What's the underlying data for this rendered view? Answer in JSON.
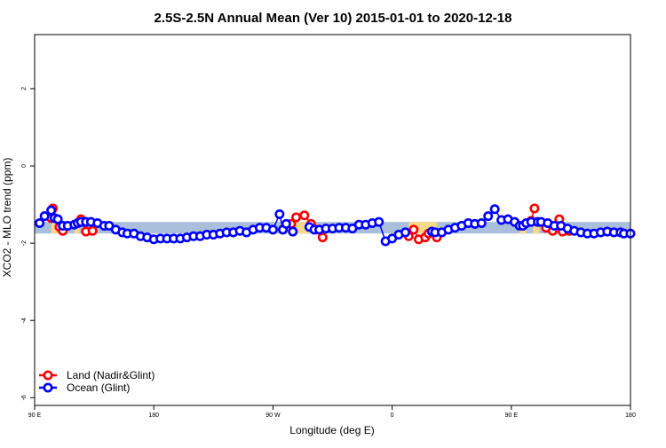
{
  "chart_data": {
    "type": "scatter",
    "title": "2.5S-2.5N Annual Mean (Ver 10)   2015-01-01 to 2020-12-18",
    "xlabel": "Longitude (deg E)",
    "ylabel": "XCO2 - MLO trend (ppm)",
    "xlim": [
      90,
      450
    ],
    "ylim": [
      -6.2,
      3.4
    ],
    "x_ticks": [
      {
        "value": 90,
        "label": "90 E"
      },
      {
        "value": 162,
        "label": "180"
      },
      {
        "value": 234,
        "label": "90 W"
      },
      {
        "value": 306,
        "label": "0"
      },
      {
        "value": 378,
        "label": "90 E"
      },
      {
        "value": 450,
        "label": "180"
      }
    ],
    "y_ticks": [
      {
        "value": 2,
        "label": "2"
      },
      {
        "value": 0,
        "label": "0"
      },
      {
        "value": -2,
        "label": "-2"
      },
      {
        "value": -4,
        "label": "-4"
      },
      {
        "value": -6,
        "label": "-6"
      }
    ],
    "grid": false,
    "legend_position": "bottom-left",
    "reference_band": {
      "ymin": -1.75,
      "ymax": -1.45,
      "color": "#a9bfdc"
    },
    "land_shading": {
      "color": "#f6d98a",
      "regions": [
        [
          100,
          104
        ],
        [
          114,
          117
        ],
        [
          242,
          256
        ],
        [
          316,
          333
        ],
        [
          383,
          387
        ],
        [
          391,
          395
        ]
      ]
    },
    "series": [
      {
        "name": "Land (Nadir&Glint)",
        "color": "#ff0000",
        "x": [
          100,
          101,
          105,
          107,
          118,
          121,
          125,
          240,
          245,
          248,
          253,
          257,
          260,
          264,
          316,
          319,
          322,
          326,
          328,
          333,
          390,
          392,
          399,
          403,
          407,
          409,
          413
        ],
        "y": [
          -1.35,
          -1.1,
          -1.58,
          -1.68,
          -1.38,
          -1.7,
          -1.68,
          -1.65,
          -1.5,
          -1.33,
          -1.28,
          -1.5,
          -1.65,
          -1.85,
          -1.82,
          -1.65,
          -1.9,
          -1.85,
          -1.75,
          -1.85,
          -1.42,
          -1.1,
          -1.6,
          -1.68,
          -1.38,
          -1.7,
          -1.68
        ]
      },
      {
        "name": "Ocean (Glint)",
        "color": "#0000ff",
        "x": [
          93,
          96,
          100,
          102,
          104,
          107,
          110,
          114,
          116,
          118,
          121,
          124,
          128,
          132,
          135,
          139,
          143,
          146,
          150,
          154,
          158,
          162,
          166,
          170,
          174,
          178,
          182,
          186,
          190,
          194,
          198,
          202,
          206,
          210,
          214,
          218,
          222,
          226,
          230,
          234,
          238,
          240,
          242,
          246,
          256,
          259,
          262,
          266,
          270,
          274,
          278,
          282,
          286,
          290,
          294,
          298,
          302,
          306,
          310,
          314,
          330,
          332,
          336,
          340,
          344,
          348,
          352,
          356,
          360,
          364,
          368,
          372,
          376,
          380,
          383,
          385,
          387,
          390,
          394,
          396,
          400,
          404,
          408,
          412,
          416,
          420,
          424,
          428,
          432,
          436,
          440,
          444,
          446,
          450
        ],
        "y": [
          -1.48,
          -1.3,
          -1.15,
          -1.35,
          -1.38,
          -1.55,
          -1.55,
          -1.52,
          -1.48,
          -1.45,
          -1.45,
          -1.45,
          -1.48,
          -1.55,
          -1.55,
          -1.65,
          -1.72,
          -1.75,
          -1.75,
          -1.82,
          -1.85,
          -1.9,
          -1.88,
          -1.88,
          -1.88,
          -1.88,
          -1.85,
          -1.82,
          -1.82,
          -1.78,
          -1.78,
          -1.75,
          -1.72,
          -1.72,
          -1.68,
          -1.72,
          -1.65,
          -1.6,
          -1.6,
          -1.65,
          -1.25,
          -1.65,
          -1.5,
          -1.7,
          -1.58,
          -1.65,
          -1.65,
          -1.62,
          -1.62,
          -1.6,
          -1.6,
          -1.62,
          -1.52,
          -1.52,
          -1.48,
          -1.45,
          -1.95,
          -1.88,
          -1.78,
          -1.72,
          -1.7,
          -1.72,
          -1.72,
          -1.65,
          -1.6,
          -1.55,
          -1.48,
          -1.5,
          -1.48,
          -1.3,
          -1.12,
          -1.4,
          -1.38,
          -1.45,
          -1.55,
          -1.55,
          -1.48,
          -1.45,
          -1.45,
          -1.45,
          -1.48,
          -1.55,
          -1.55,
          -1.62,
          -1.68,
          -1.72,
          -1.75,
          -1.75,
          -1.72,
          -1.7,
          -1.72,
          -1.72,
          -1.75,
          -1.75
        ]
      }
    ]
  }
}
